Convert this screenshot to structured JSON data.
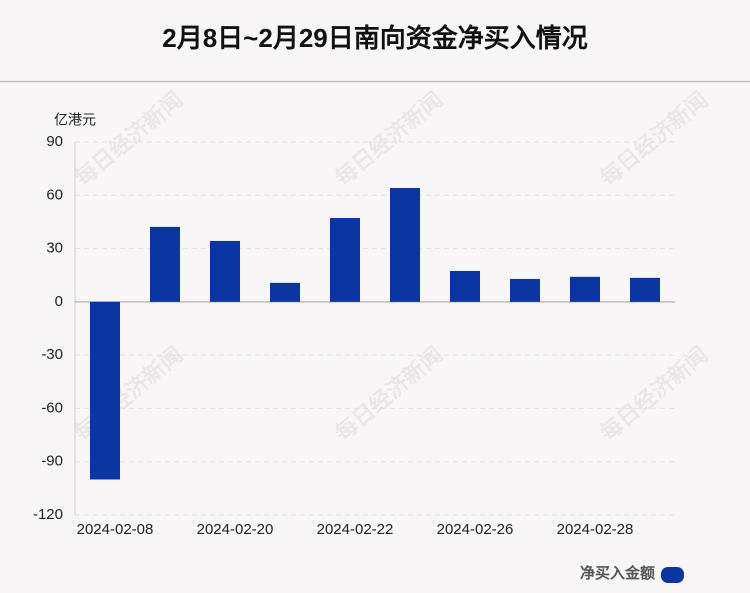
{
  "chart_data": {
    "type": "bar",
    "title": "2月8日~2月29日南向资金净买入情况",
    "y_label": "亿港元",
    "watermark": "每日经济新闻",
    "categories": [
      "2024-02-08",
      null,
      "2024-02-20",
      null,
      "2024-02-22",
      null,
      "2024-02-26",
      null,
      "2024-02-28",
      null
    ],
    "series": [
      {
        "name": "净买入金额",
        "color": "#0b35a0",
        "values": [
          -100,
          42.2,
          34.3,
          10.7,
          47.2,
          64.1,
          17.4,
          12.9,
          14.1,
          13.5
        ]
      }
    ],
    "ylim": [
      -120,
      90
    ],
    "yticks": [
      -120,
      -90,
      -60,
      -30,
      0,
      30,
      60,
      90
    ],
    "grid": true,
    "legend": "bottom-right"
  }
}
